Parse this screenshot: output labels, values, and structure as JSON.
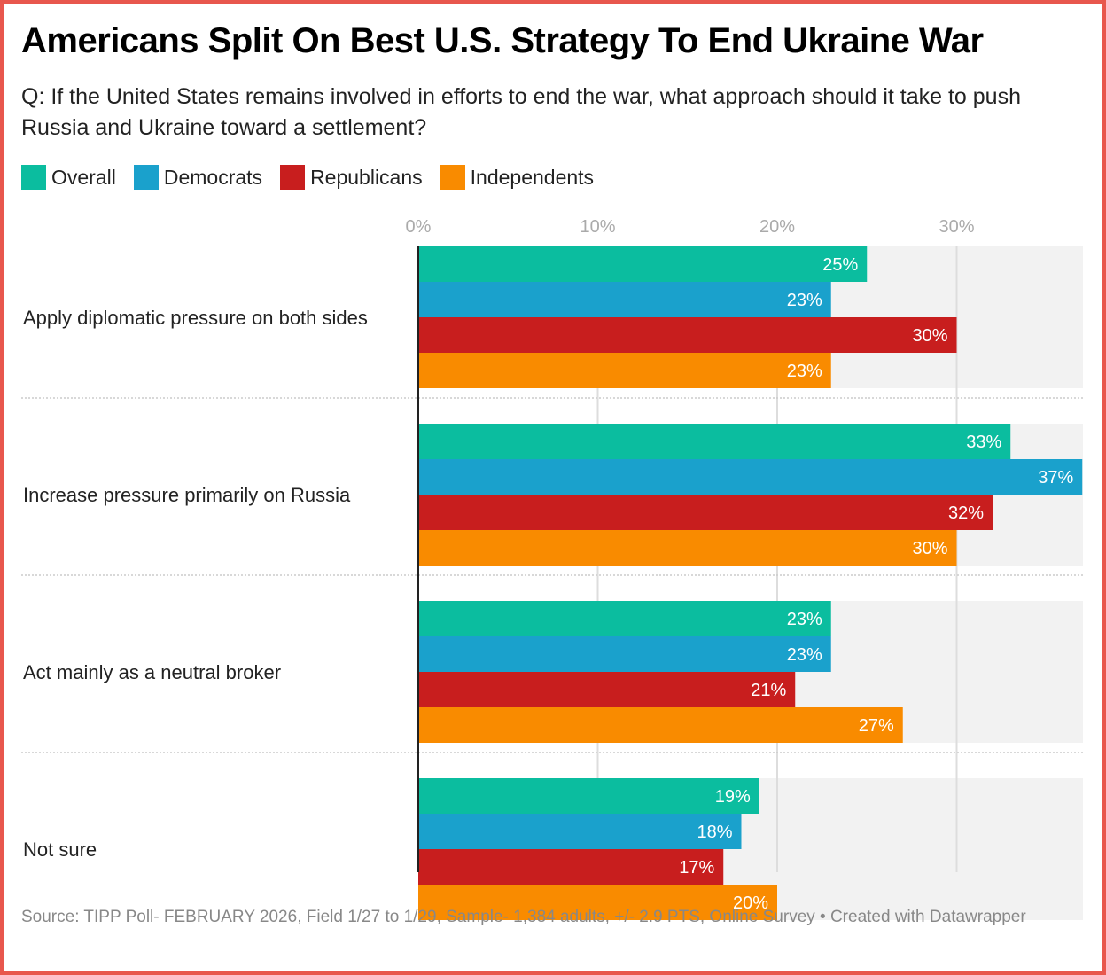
{
  "chart_data": {
    "type": "bar",
    "orientation": "horizontal",
    "title": "Americans Split On Best U.S. Strategy To End Ukraine War",
    "subtitle": "Q: If the United States remains involved in efforts to end the war, what approach should it take to push Russia and Ukraine toward a settlement?",
    "categories": [
      "Apply diplomatic pressure on both sides",
      "Increase pressure primarily on Russia",
      "Act mainly as a neutral broker",
      "Not sure"
    ],
    "series": [
      {
        "name": "Overall",
        "color": "#0bbd9f",
        "values": [
          25,
          33,
          23,
          19
        ]
      },
      {
        "name": "Democrats",
        "color": "#1aa1cc",
        "values": [
          23,
          37,
          23,
          18
        ]
      },
      {
        "name": "Republicans",
        "color": "#c81e1e",
        "values": [
          30,
          32,
          21,
          17
        ]
      },
      {
        "name": "Independents",
        "color": "#f98b00",
        "values": [
          23,
          30,
          27,
          20
        ]
      }
    ],
    "xticks": [
      0,
      10,
      20,
      30
    ],
    "xtick_labels": [
      "0%",
      "10%",
      "20%",
      "30%"
    ],
    "xlim": [
      0,
      37
    ],
    "value_suffix": "%",
    "xlabel": "",
    "ylabel": "",
    "grid": true,
    "legend_position": "top-left",
    "source": "Source: TIPP Poll- FEBRUARY 2026, Field 1/27 to 1/29, Sample- 1,384 adults, +/- 2.9 PTS, Online Survey • Created with Datawrapper"
  },
  "colors": {
    "frame": "#e8574d",
    "track": "#f2f2f2",
    "gridline": "#dddddd"
  }
}
